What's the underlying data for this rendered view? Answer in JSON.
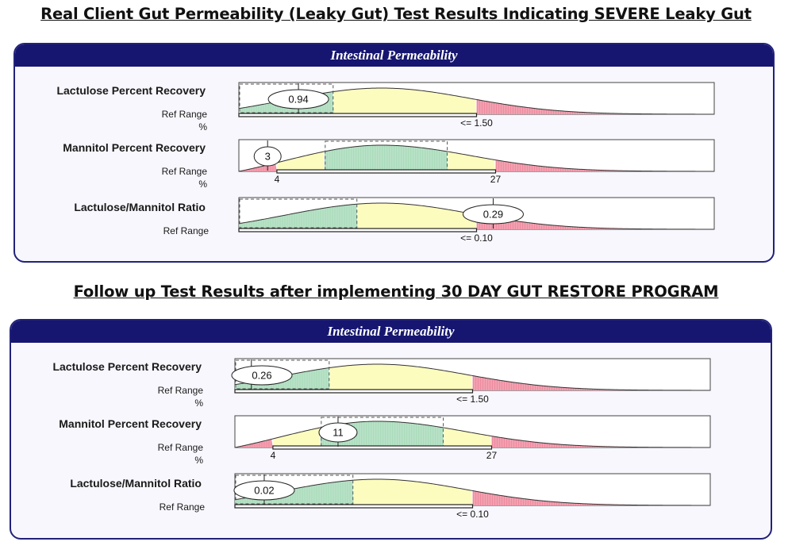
{
  "headings": {
    "before": "Real Client Gut Permeability (Leaky Gut) Test Results Indicating SEVERE Leaky Gut",
    "after": "Follow up Test Results after implementing 30 DAY GUT RESTORE PROGRAM"
  },
  "ref_range_label": "Ref Range",
  "unit_label": "%",
  "colors": {
    "green": "#b9e2c7",
    "yellow": "#fdfcbf",
    "red": "#f2a0b0",
    "navy": "#161670"
  },
  "chart_data": [
    {
      "type": "bar",
      "title": "Intestinal Permeability",
      "panel_heading": "Real Client Gut Permeability (Leaky Gut) Test Results Indicating SEVERE Leaky Gut",
      "tests": [
        {
          "name": "Lactulose Percent Recovery",
          "unit": "%",
          "result": "0.94",
          "ref_range": "<= 1.50",
          "ref_low": "",
          "ref_high": ""
        },
        {
          "name": "Mannitol Percent Recovery",
          "unit": "%",
          "result": "3",
          "ref_range": "",
          "ref_low": "4",
          "ref_high": "27"
        },
        {
          "name": "Lactulose/Mannitol Ratio",
          "unit": "",
          "result": "0.29",
          "ref_range": "<= 0.10",
          "ref_low": "",
          "ref_high": ""
        }
      ]
    },
    {
      "type": "bar",
      "title": "Intestinal Permeability",
      "panel_heading": "Follow up Test Results after implementing 30 DAY GUT RESTORE PROGRAM",
      "tests": [
        {
          "name": "Lactulose Percent Recovery",
          "unit": "%",
          "result": "0.26",
          "ref_range": "<= 1.50",
          "ref_low": "",
          "ref_high": ""
        },
        {
          "name": "Mannitol Percent Recovery",
          "unit": "%",
          "result": "11",
          "ref_range": "",
          "ref_low": "4",
          "ref_high": "27"
        },
        {
          "name": "Lactulose/Mannitol Ratio",
          "unit": "",
          "result": "0.02",
          "ref_range": "<= 0.10",
          "ref_low": "",
          "ref_high": ""
        }
      ]
    }
  ]
}
